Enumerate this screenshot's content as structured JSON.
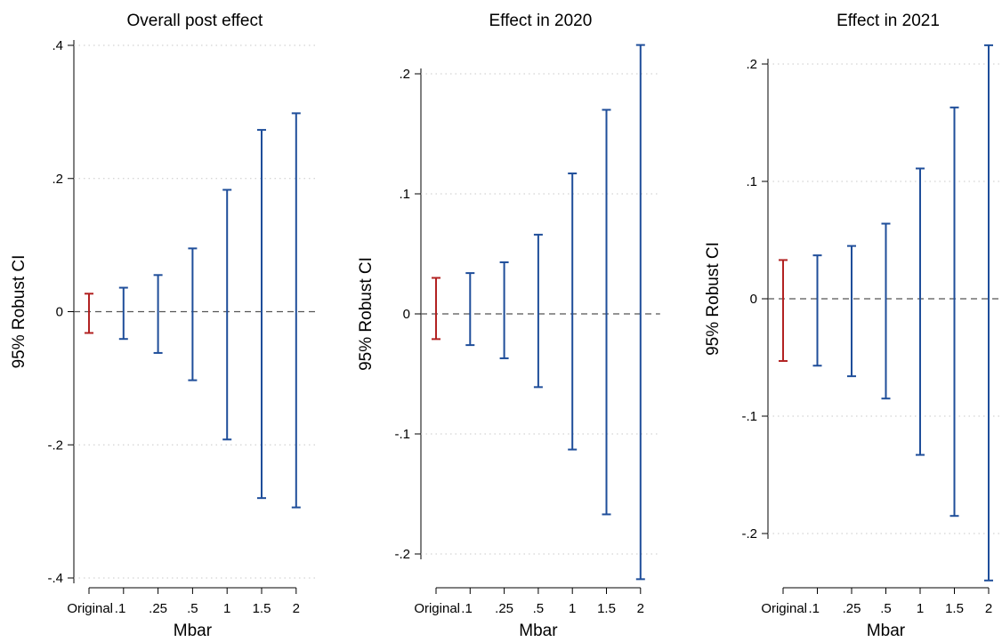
{
  "colors": {
    "original": "#b22222",
    "robust": "#1f4e9a"
  },
  "chart_data": [
    {
      "type": "errorbar",
      "title": "Overall post effect",
      "xlabel": "Mbar",
      "ylabel": "95% Robust CI",
      "categories": [
        "Original",
        ".1",
        ".25",
        ".5",
        "1",
        "1.5",
        "2"
      ],
      "ylim": [
        -0.4,
        0.4
      ],
      "yticks": [
        -0.4,
        -0.2,
        0,
        0.2,
        0.4
      ],
      "ytick_labels": [
        "-.4",
        "-.2",
        "0",
        ".2",
        ".4"
      ],
      "lower": [
        -0.032,
        -0.041,
        -0.062,
        -0.103,
        -0.192,
        -0.28,
        -0.294
      ],
      "upper": [
        0.027,
        0.036,
        0.055,
        0.095,
        0.183,
        0.273,
        0.298
      ],
      "grid": true
    },
    {
      "type": "errorbar",
      "title": "Effect in 2020",
      "xlabel": "Mbar",
      "ylabel": "95% Robust CI",
      "categories": [
        "Original",
        ".1",
        ".25",
        ".5",
        "1",
        "1.5",
        "2"
      ],
      "ylim": [
        -0.2,
        0.2
      ],
      "yticks": [
        -0.2,
        -0.1,
        0,
        0.1,
        0.2
      ],
      "ytick_labels": [
        "-.2",
        "-.1",
        "0",
        ".1",
        ".2"
      ],
      "lower": [
        -0.021,
        -0.026,
        -0.037,
        -0.061,
        -0.113,
        -0.167,
        -0.221
      ],
      "upper": [
        0.03,
        0.034,
        0.043,
        0.066,
        0.117,
        0.17,
        0.224
      ],
      "grid": true
    },
    {
      "type": "errorbar",
      "title": "Effect in 2021",
      "xlabel": "Mbar",
      "ylabel": "95% Robust CI",
      "categories": [
        "Original",
        ".1",
        ".25",
        ".5",
        "1",
        "1.5",
        "2"
      ],
      "ylim": [
        -0.2,
        0.2
      ],
      "yticks": [
        -0.2,
        -0.1,
        0,
        0.1,
        0.2
      ],
      "ytick_labels": [
        "-.2",
        "-.1",
        "0",
        ".1",
        ".2"
      ],
      "lower": [
        -0.053,
        -0.057,
        -0.066,
        -0.085,
        -0.133,
        -0.185,
        -0.24
      ],
      "upper": [
        0.033,
        0.037,
        0.045,
        0.064,
        0.111,
        0.163,
        0.216
      ],
      "grid": true
    }
  ]
}
